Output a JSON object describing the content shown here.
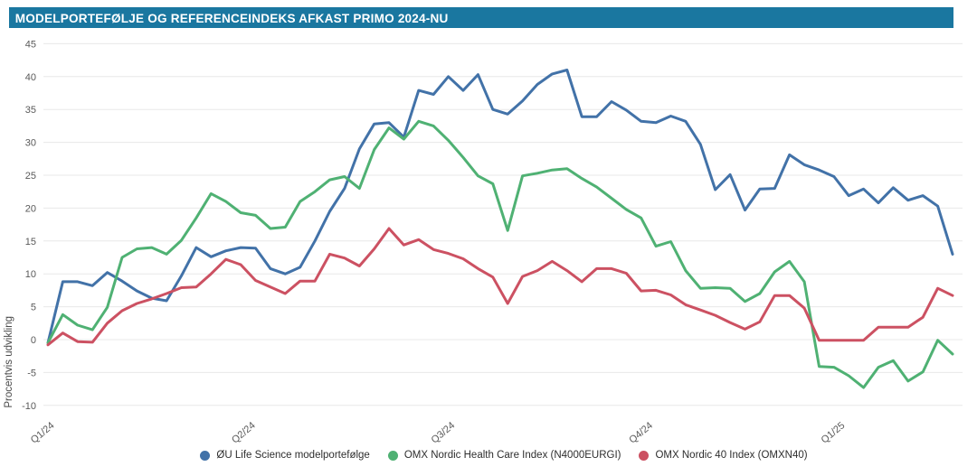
{
  "header": {
    "title": "MODELPORTEFØLJE OG REFERENCEINDEKS AFKAST PRIMO 2024-NU",
    "bar_color": "#1a77a0"
  },
  "chart_data": {
    "type": "line",
    "title": "MODELPORTEFØLJE OG REFERENCEINDEKS AFKAST PRIMO 2024-NU",
    "xlabel": "",
    "ylabel": "Procentvis udvikling",
    "ylim": [
      -10,
      45
    ],
    "ytick_step": 5,
    "ytick_labels": [
      "-10",
      "-5",
      "0",
      "5",
      "10",
      "15",
      "20",
      "25",
      "30",
      "35",
      "40",
      "45"
    ],
    "grid": "horizontal",
    "grid_color": "#e8e8e8",
    "tick_text_color": "#595959",
    "x_unit": "weeks since start of 2024",
    "xtick_labels": [
      "Q1/24",
      "Q2/24",
      "Q3/24",
      "Q4/24",
      "Q1/25"
    ],
    "xtick_positions": [
      0.1,
      13.65,
      27.1,
      40.45,
      53.4
    ],
    "legend_position": "bottom",
    "series": [
      {
        "name": "ØU Life Science modelportefølge",
        "color": "#4272a8",
        "values": [
          -0.5,
          8.8,
          8.8,
          8.2,
          10.2,
          8.9,
          7.4,
          6.3,
          5.9,
          9.7,
          14.0,
          12.6,
          13.5,
          14.0,
          13.9,
          10.8,
          10.0,
          11.0,
          15.0,
          19.5,
          23.0,
          29.0,
          32.8,
          33.0,
          30.8,
          37.9,
          37.3,
          40.0,
          37.9,
          40.3,
          35.0,
          34.3,
          36.3,
          38.8,
          40.4,
          41.0,
          33.9,
          33.9,
          36.2,
          34.9,
          33.2,
          33.0,
          34.0,
          33.2,
          29.7,
          22.8,
          25.1,
          19.7,
          22.9,
          23.0,
          28.1,
          26.6,
          25.8,
          24.8,
          21.9,
          22.9,
          20.8,
          23.1,
          21.2,
          21.9,
          20.3,
          13.0
        ]
      },
      {
        "name": "OMX Nordic Health Care Index (N4000EURGI)",
        "color": "#4fb173",
        "values": [
          -0.5,
          3.8,
          2.2,
          1.5,
          4.9,
          12.5,
          13.8,
          14.0,
          13.0,
          15.1,
          18.5,
          22.2,
          21.0,
          19.3,
          18.9,
          16.9,
          17.1,
          21.0,
          22.5,
          24.3,
          24.8,
          23.0,
          28.9,
          32.2,
          30.5,
          33.2,
          32.5,
          30.3,
          27.7,
          24.9,
          23.7,
          16.6,
          24.9,
          25.3,
          25.8,
          26.0,
          24.5,
          23.2,
          21.5,
          19.8,
          18.5,
          14.2,
          14.9,
          10.5,
          7.8,
          7.9,
          7.8,
          5.8,
          7.0,
          10.3,
          11.9,
          8.8,
          -4.1,
          -4.2,
          -5.5,
          -7.3,
          -4.2,
          -3.2,
          -6.3,
          -4.9,
          -0.1,
          -2.2
        ]
      },
      {
        "name": "OMX Nordic 40 Index (OMXN40)",
        "color": "#cc5162",
        "values": [
          -0.8,
          1.0,
          -0.3,
          -0.4,
          2.5,
          4.4,
          5.5,
          6.2,
          7.0,
          7.9,
          8.0,
          10.0,
          12.2,
          11.4,
          9.0,
          8.0,
          7.0,
          8.9,
          8.9,
          13.0,
          12.4,
          11.2,
          13.8,
          16.9,
          14.4,
          15.2,
          13.7,
          13.1,
          12.3,
          10.8,
          9.5,
          5.5,
          9.6,
          10.5,
          11.9,
          10.5,
          8.8,
          10.8,
          10.8,
          10.1,
          7.4,
          7.5,
          6.8,
          5.3,
          4.5,
          3.7,
          2.6,
          1.6,
          2.7,
          6.7,
          6.7,
          4.8,
          -0.1,
          -0.1,
          -0.1,
          -0.1,
          1.9,
          1.9,
          1.9,
          3.4,
          7.8,
          6.7
        ]
      }
    ]
  }
}
